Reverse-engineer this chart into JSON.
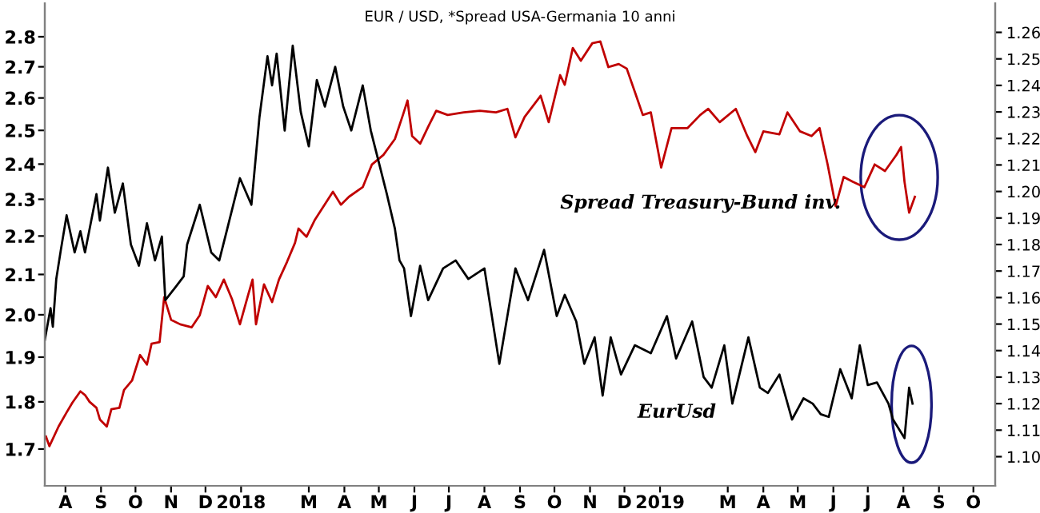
{
  "chart_data": {
    "type": "line",
    "title": "EUR / USD, *Spread USA-Germania 10 anni",
    "log": "y",
    "grid": false,
    "legend": false,
    "marker": "none",
    "line_style": "solid",
    "xlim": [
      "2017-07-14",
      "2019-10-20"
    ],
    "xticks": [
      {
        "value": "2017-08-01",
        "label": "A"
      },
      {
        "value": "2017-09-01",
        "label": "S"
      },
      {
        "value": "2017-10-01",
        "label": "O"
      },
      {
        "value": "2017-11-01",
        "label": "N"
      },
      {
        "value": "2017-12-01",
        "label": "D"
      },
      {
        "value": "2018-01-01",
        "label": "2018"
      },
      {
        "value": "2018-03-01",
        "label": "M"
      },
      {
        "value": "2018-04-01",
        "label": "A"
      },
      {
        "value": "2018-05-01",
        "label": "M"
      },
      {
        "value": "2018-06-01",
        "label": "J"
      },
      {
        "value": "2018-07-01",
        "label": "J"
      },
      {
        "value": "2018-08-01",
        "label": "A"
      },
      {
        "value": "2018-09-01",
        "label": "S"
      },
      {
        "value": "2018-10-01",
        "label": "O"
      },
      {
        "value": "2018-11-01",
        "label": "N"
      },
      {
        "value": "2018-12-01",
        "label": "D"
      },
      {
        "value": "2019-01-01",
        "label": "2019"
      },
      {
        "value": "2019-03-01",
        "label": "M"
      },
      {
        "value": "2019-04-01",
        "label": "A"
      },
      {
        "value": "2019-05-01",
        "label": "M"
      },
      {
        "value": "2019-06-01",
        "label": "J"
      },
      {
        "value": "2019-07-01",
        "label": "J"
      },
      {
        "value": "2019-08-01",
        "label": "A"
      },
      {
        "value": "2019-09-01",
        "label": "S"
      },
      {
        "value": "2019-10-01",
        "label": "O"
      }
    ],
    "ylim": [
      1.626,
      2.916
    ],
    "yticks": [
      1.7,
      1.8,
      1.9,
      {
        "value": 2,
        "label": "2.0"
      },
      2.1,
      2.2,
      2.3,
      2.4,
      2.5,
      2.6,
      2.7,
      2.8
    ],
    "y2lim": [
      1.089,
      1.271
    ],
    "y2ticks": [
      {
        "value": 1.1,
        "label": "1.10"
      },
      1.11,
      1.12,
      1.13,
      1.14,
      1.15,
      1.16,
      1.17,
      1.18,
      1.19,
      {
        "value": 1.2,
        "label": "1.20"
      },
      1.21,
      1.22,
      1.23,
      1.24,
      1.25,
      1.26
    ],
    "series": [
      {
        "name": "Spread Treasury-Bund inv.",
        "color": "#c00000",
        "axis": "y",
        "x": [
          "2017-07-15",
          "2017-07-18",
          "2017-07-26",
          "2017-08-02",
          "2017-08-07",
          "2017-08-14",
          "2017-08-18",
          "2017-08-22",
          "2017-08-28",
          "2017-08-31",
          "2017-09-06",
          "2017-09-10",
          "2017-09-17",
          "2017-09-21",
          "2017-09-28",
          "2017-10-05",
          "2017-10-11",
          "2017-10-15",
          "2017-10-22",
          "2017-10-26",
          "2017-11-01",
          "2017-11-09",
          "2017-11-19",
          "2017-11-26",
          "2017-12-03",
          "2017-12-10",
          "2017-12-17",
          "2017-12-24",
          "2017-12-31",
          "2018-01-07",
          "2018-01-11",
          "2018-01-14",
          "2018-01-21",
          "2018-01-28",
          "2018-02-03",
          "2018-02-10",
          "2018-02-17",
          "2018-02-20",
          "2018-02-27",
          "2018-03-06",
          "2018-03-22",
          "2018-03-29",
          "2018-04-05",
          "2018-04-17",
          "2018-04-25",
          "2018-05-05",
          "2018-05-15",
          "2018-05-22",
          "2018-05-26",
          "2018-05-30",
          "2018-06-06",
          "2018-06-13",
          "2018-06-20",
          "2018-06-30",
          "2018-07-14",
          "2018-07-28",
          "2018-08-11",
          "2018-08-21",
          "2018-08-28",
          "2018-09-05",
          "2018-09-19",
          "2018-09-26",
          "2018-10-06",
          "2018-10-10",
          "2018-10-17",
          "2018-10-24",
          "2018-11-03",
          "2018-11-10",
          "2018-11-17",
          "2018-11-26",
          "2018-12-03",
          "2018-12-10",
          "2018-12-17",
          "2018-12-24",
          "2019-01-02",
          "2019-01-11",
          "2019-01-25",
          "2019-02-05",
          "2019-02-12",
          "2019-02-22",
          "2019-03-08",
          "2019-03-18",
          "2019-03-25",
          "2019-04-01",
          "2019-04-15",
          "2019-04-22",
          "2019-05-03",
          "2019-05-13",
          "2019-05-20",
          "2019-05-27",
          "2019-06-03",
          "2019-06-10",
          "2019-06-18",
          "2019-06-28",
          "2019-07-07",
          "2019-07-16",
          "2019-07-26",
          "2019-07-30",
          "2019-08-02",
          "2019-08-06",
          "2019-08-11"
        ],
        "values": [
          1.726,
          1.706,
          1.747,
          1.777,
          1.798,
          1.823,
          1.815,
          1.8,
          1.787,
          1.762,
          1.747,
          1.784,
          1.787,
          1.826,
          1.847,
          1.905,
          1.883,
          1.931,
          1.935,
          2.043,
          1.988,
          1.977,
          1.97,
          1.999,
          2.071,
          2.043,
          2.087,
          2.039,
          1.977,
          2.047,
          2.087,
          1.977,
          2.075,
          2.031,
          2.087,
          2.132,
          2.182,
          2.22,
          2.198,
          2.242,
          2.321,
          2.285,
          2.307,
          2.334,
          2.399,
          2.427,
          2.474,
          2.547,
          2.592,
          2.483,
          2.46,
          2.511,
          2.56,
          2.547,
          2.555,
          2.56,
          2.555,
          2.566,
          2.479,
          2.541,
          2.607,
          2.525,
          2.673,
          2.642,
          2.762,
          2.72,
          2.778,
          2.784,
          2.699,
          2.709,
          2.694,
          2.62,
          2.547,
          2.555,
          2.39,
          2.507,
          2.507,
          2.547,
          2.566,
          2.525,
          2.566,
          2.483,
          2.435,
          2.497,
          2.488,
          2.555,
          2.497,
          2.483,
          2.507,
          2.399,
          2.281,
          2.363,
          2.349,
          2.334,
          2.399,
          2.38,
          2.427,
          2.45,
          2.349,
          2.263,
          2.307
        ]
      },
      {
        "name": "EurUsd",
        "color": "#000000",
        "axis": "y2",
        "x": [
          "2017-07-14",
          "2017-07-19",
          "2017-07-21",
          "2017-07-24",
          "2017-07-28",
          "2017-08-02",
          "2017-08-09",
          "2017-08-14",
          "2017-08-18",
          "2017-08-28",
          "2017-08-31",
          "2017-09-07",
          "2017-09-13",
          "2017-09-20",
          "2017-09-27",
          "2017-10-04",
          "2017-10-11",
          "2017-10-18",
          "2017-10-24",
          "2017-10-27",
          "2017-11-05",
          "2017-11-12",
          "2017-11-15",
          "2017-11-26",
          "2017-12-06",
          "2017-12-13",
          "2017-12-20",
          "2017-12-31",
          "2018-01-10",
          "2018-01-17",
          "2018-01-24",
          "2018-01-28",
          "2018-02-01",
          "2018-02-08",
          "2018-02-15",
          "2018-02-22",
          "2018-03-01",
          "2018-03-08",
          "2018-03-15",
          "2018-03-24",
          "2018-03-31",
          "2018-04-07",
          "2018-04-17",
          "2018-04-24",
          "2018-05-01",
          "2018-05-08",
          "2018-05-15",
          "2018-05-19",
          "2018-05-23",
          "2018-05-29",
          "2018-06-06",
          "2018-06-13",
          "2018-06-26",
          "2018-07-07",
          "2018-07-18",
          "2018-08-01",
          "2018-08-14",
          "2018-08-28",
          "2018-09-08",
          "2018-09-22",
          "2018-10-03",
          "2018-10-10",
          "2018-10-20",
          "2018-10-27",
          "2018-11-05",
          "2018-11-12",
          "2018-11-19",
          "2018-11-28",
          "2018-12-10",
          "2018-12-24",
          "2019-01-07",
          "2019-01-15",
          "2019-01-29",
          "2019-02-08",
          "2019-02-15",
          "2019-02-26",
          "2019-03-05",
          "2019-03-19",
          "2019-03-29",
          "2019-04-05",
          "2019-04-15",
          "2019-04-26",
          "2019-05-06",
          "2019-05-14",
          "2019-05-21",
          "2019-05-28",
          "2019-06-07",
          "2019-06-17",
          "2019-06-24",
          "2019-07-01",
          "2019-07-09",
          "2019-07-19",
          "2019-07-23",
          "2019-08-02",
          "2019-08-06",
          "2019-08-09"
        ],
        "values": [
          1.144,
          1.156,
          1.149,
          1.167,
          1.178,
          1.191,
          1.177,
          1.185,
          1.177,
          1.199,
          1.189,
          1.209,
          1.192,
          1.203,
          1.18,
          1.172,
          1.188,
          1.174,
          1.183,
          1.159,
          1.164,
          1.168,
          1.18,
          1.195,
          1.177,
          1.174,
          1.186,
          1.205,
          1.195,
          1.228,
          1.251,
          1.24,
          1.252,
          1.223,
          1.255,
          1.23,
          1.217,
          1.242,
          1.232,
          1.247,
          1.232,
          1.223,
          1.24,
          1.223,
          1.211,
          1.199,
          1.186,
          1.174,
          1.171,
          1.153,
          1.172,
          1.159,
          1.171,
          1.174,
          1.167,
          1.171,
          1.135,
          1.171,
          1.159,
          1.178,
          1.153,
          1.161,
          1.151,
          1.135,
          1.145,
          1.123,
          1.145,
          1.131,
          1.142,
          1.139,
          1.153,
          1.137,
          1.151,
          1.13,
          1.126,
          1.142,
          1.12,
          1.145,
          1.126,
          1.124,
          1.131,
          1.114,
          1.122,
          1.12,
          1.116,
          1.115,
          1.133,
          1.122,
          1.142,
          1.127,
          1.128,
          1.12,
          1.114,
          1.107,
          1.126,
          1.12
        ]
      }
    ]
  }
}
